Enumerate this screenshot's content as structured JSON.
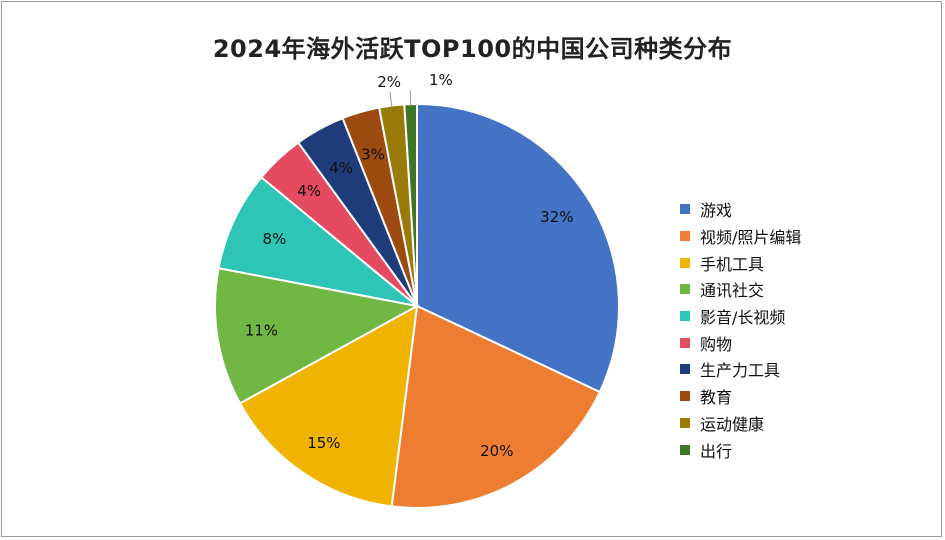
{
  "chart_data": {
    "type": "pie",
    "title": "2024年海外活跃TOP100的中国公司种类分布",
    "categories": [
      "游戏",
      "视频/照片编辑",
      "手机工具",
      "通讯社交",
      "影音/长视频",
      "购物",
      "生产力工具",
      "教育",
      "运动健康",
      "出行"
    ],
    "values": [
      32,
      20,
      15,
      11,
      8,
      4,
      4,
      3,
      2,
      1
    ],
    "labels": [
      "32%",
      "20%",
      "15%",
      "11%",
      "8%",
      "4%",
      "4%",
      "3%",
      "2%",
      "1%"
    ],
    "colors": [
      "#4472C4",
      "#ED7D31",
      "#F0B400",
      "#70B744",
      "#2EC4B6",
      "#E64A61",
      "#1F3C7A",
      "#9C4A10",
      "#9A7A08",
      "#3E7527"
    ],
    "legend_position": "right"
  }
}
